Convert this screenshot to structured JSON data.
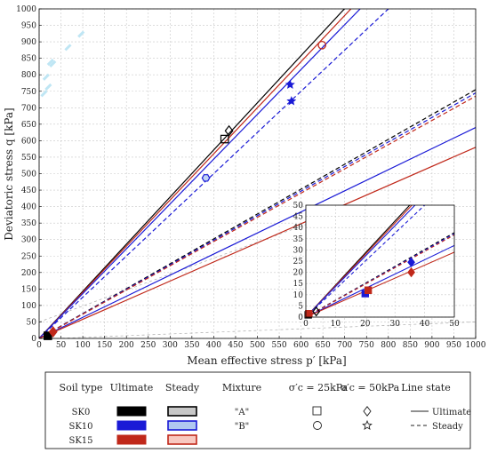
{
  "chart_data": {
    "type": "line",
    "xlabel": "Mean effective stress p′ [kPa]",
    "ylabel": "Deviatoric stress q [kPa]",
    "xlim": [
      0,
      1000
    ],
    "ylim": [
      0,
      1000
    ],
    "xticks": [
      0,
      50,
      100,
      150,
      200,
      250,
      300,
      350,
      400,
      450,
      500,
      550,
      600,
      650,
      700,
      750,
      800,
      850,
      900,
      950,
      1000
    ],
    "yticks": [
      0,
      50,
      100,
      150,
      200,
      250,
      300,
      350,
      400,
      450,
      500,
      550,
      600,
      650,
      700,
      750,
      800,
      850,
      900,
      950,
      1000
    ],
    "grid": true,
    "colors": {
      "SK0": "#000000",
      "SK10": "#1a1ad6",
      "SK15": "#c0281a"
    },
    "series": [
      {
        "name": "SK0 Ultimate (A)",
        "soil": "SK0",
        "state": "ultimate",
        "x": [
          0,
          1000
        ],
        "y": [
          0,
          1430
        ]
      },
      {
        "name": "SK15 Ultimate (A)",
        "soil": "SK15",
        "state": "ultimate",
        "x": [
          0,
          1000
        ],
        "y": [
          0,
          1400
        ]
      },
      {
        "name": "SK10 Ultimate (A)",
        "soil": "SK10",
        "state": "ultimate",
        "x": [
          0,
          1000
        ],
        "y": [
          0,
          1360
        ]
      },
      {
        "name": "SK10 Steady (A)",
        "soil": "SK10",
        "state": "steady",
        "x": [
          0,
          1000
        ],
        "y": [
          0,
          1250
        ]
      },
      {
        "name": "SK0 Steady (B)",
        "soil": "SK0",
        "state": "steady",
        "x": [
          0,
          1000
        ],
        "y": [
          0,
          755
        ]
      },
      {
        "name": "SK10 Steady (B)",
        "soil": "SK10",
        "state": "steady",
        "x": [
          0,
          1000
        ],
        "y": [
          0,
          745
        ]
      },
      {
        "name": "SK15 Steady (B)",
        "soil": "SK15",
        "state": "steady",
        "x": [
          0,
          1000
        ],
        "y": [
          0,
          735
        ]
      },
      {
        "name": "SK10 Ultimate (B)",
        "soil": "SK10",
        "state": "ultimate",
        "x": [
          0,
          1000
        ],
        "y": [
          0,
          640
        ]
      },
      {
        "name": "SK15 Ultimate (B)",
        "soil": "SK15",
        "state": "ultimate",
        "x": [
          0,
          1000
        ],
        "y": [
          0,
          580
        ]
      }
    ],
    "points": [
      {
        "soil": "SK0",
        "stress": "25",
        "marker": "square",
        "x": 425,
        "y": 605
      },
      {
        "soil": "SK0",
        "stress": "50",
        "marker": "diamond",
        "x": 435,
        "y": 630
      },
      {
        "soil": "SK15",
        "stress": "25",
        "marker": "circle",
        "x": 648,
        "y": 890
      },
      {
        "soil": "SK10",
        "stress": "25",
        "marker": "hexagon",
        "x": 382,
        "y": 487
      },
      {
        "soil": "SK10",
        "stress": "50",
        "marker": "star",
        "x": 575,
        "y": 770
      },
      {
        "soil": "SK10",
        "stress": "50",
        "marker": "star",
        "x": 578,
        "y": 720
      },
      {
        "soil": "SK0",
        "stress": "25",
        "marker": "square-filled",
        "x": 20,
        "y": 8
      },
      {
        "soil": "SK15",
        "stress": "50",
        "marker": "diamond-filled",
        "x": 32,
        "y": 20
      }
    ],
    "inset": {
      "xlim": [
        0,
        50
      ],
      "ylim": [
        0,
        50
      ],
      "xticks": [
        0,
        10,
        20,
        30,
        40,
        50
      ],
      "yticks": [
        0,
        5,
        10,
        15,
        20,
        25,
        30,
        35,
        40,
        45,
        50
      ],
      "series": [
        {
          "soil": "SK0",
          "state": "ultimate",
          "x": [
            0,
            50
          ],
          "y": [
            0,
            71.5
          ]
        },
        {
          "soil": "SK15",
          "state": "ultimate",
          "x": [
            0,
            50
          ],
          "y": [
            0,
            70
          ]
        },
        {
          "soil": "SK10",
          "state": "ultimate",
          "x": [
            0,
            50
          ],
          "y": [
            0,
            68
          ]
        },
        {
          "soil": "SK10",
          "state": "steady",
          "x": [
            0,
            50
          ],
          "y": [
            0,
            62.5
          ]
        },
        {
          "soil": "SK0",
          "state": "steady",
          "x": [
            0,
            50
          ],
          "y": [
            0,
            37.75
          ]
        },
        {
          "soil": "SK10",
          "state": "steady",
          "x": [
            0,
            50
          ],
          "y": [
            0,
            37.25
          ]
        },
        {
          "soil": "SK15",
          "state": "steady",
          "x": [
            0,
            50
          ],
          "y": [
            0,
            36.75
          ]
        },
        {
          "soil": "SK10",
          "state": "ultimate",
          "x": [
            0,
            50
          ],
          "y": [
            0,
            32
          ]
        },
        {
          "soil": "SK15",
          "state": "ultimate",
          "x": [
            0,
            50
          ],
          "y": [
            0,
            29
          ]
        }
      ],
      "points": [
        {
          "soil": "SK0",
          "marker": "square-open",
          "x": 0.8,
          "y": 1
        },
        {
          "soil": "SK15",
          "marker": "square-filled",
          "x": 1,
          "y": 1.5
        },
        {
          "soil": "SK0",
          "marker": "diamond-open",
          "x": 3.5,
          "y": 2.5
        },
        {
          "soil": "SK10",
          "marker": "square-filled",
          "x": 20,
          "y": 10.5
        },
        {
          "soil": "SK15",
          "marker": "square-filled",
          "x": 21,
          "y": 12
        },
        {
          "soil": "SK10",
          "marker": "diamond-filled",
          "x": 35.5,
          "y": 24.5
        },
        {
          "soil": "SK15",
          "marker": "diamond-filled",
          "x": 35.5,
          "y": 20
        }
      ]
    }
  },
  "legend": {
    "headers": {
      "soil_type": "Soil type",
      "ultimate": "Ultimate",
      "steady": "Steady",
      "mixture": "Mixture",
      "sigma25": "σ′c = 25kPa",
      "sigma50": "σ′c = 50kPa",
      "line_state": "Line state"
    },
    "rows": [
      {
        "soil": "SK0",
        "ult_color": "#000000",
        "steady_fill": "#c8c8c8",
        "steady_stroke": "#000000"
      },
      {
        "soil": "SK10",
        "ult_color": "#1a1ad6",
        "steady_fill": "#b0c8f0",
        "steady_stroke": "#1a1ad6"
      },
      {
        "soil": "SK15",
        "ult_color": "#c0281a",
        "steady_fill": "#f8c8c0",
        "steady_stroke": "#c0281a"
      }
    ],
    "mixtures": [
      "\"A\"",
      "\"B\""
    ],
    "sigma25_icons": [
      "square-icon",
      "circle-icon"
    ],
    "sigma50_icons": [
      "diamond-icon",
      "star-icon"
    ],
    "line_states": [
      "Ultimate",
      "Steady"
    ]
  }
}
